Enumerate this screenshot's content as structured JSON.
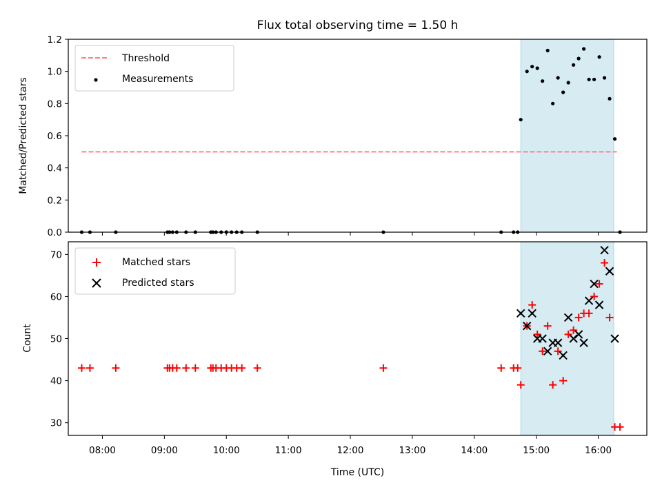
{
  "chart_data": [
    {
      "type": "scatter",
      "title": "Flux total observing time = 1.50 h",
      "xlabel": "",
      "ylabel": "Matched/Predicted stars",
      "xlim": [
        "07:27",
        "16:47"
      ],
      "ylim": [
        0,
        1.2
      ],
      "yticks": [
        "0.0",
        "0.2",
        "0.4",
        "0.6",
        "0.8",
        "1.0",
        "1.2"
      ],
      "highlight_span": {
        "x0": "14:45",
        "x1": "16:15",
        "color": "#add8e6"
      },
      "threshold": {
        "name": "Threshold",
        "y": 0.5,
        "x0": "07:40",
        "x1": "16:18",
        "color": "#ff7f7f",
        "style": "dashed"
      },
      "legend": {
        "location": "upper left",
        "items": [
          "Threshold",
          "Measurements"
        ]
      },
      "series": [
        {
          "name": "Measurements",
          "color": "#000000",
          "marker": "dot",
          "points": [
            [
              "07:40",
              0
            ],
            [
              "07:48",
              0
            ],
            [
              "08:13",
              0
            ],
            [
              "09:03",
              0
            ],
            [
              "09:05",
              0
            ],
            [
              "09:08",
              0
            ],
            [
              "09:12",
              0
            ],
            [
              "09:21",
              0
            ],
            [
              "09:30",
              0
            ],
            [
              "09:45",
              0
            ],
            [
              "09:47",
              0
            ],
            [
              "09:50",
              0
            ],
            [
              "09:55",
              0
            ],
            [
              "10:00",
              0
            ],
            [
              "10:05",
              0
            ],
            [
              "10:10",
              0
            ],
            [
              "10:15",
              0
            ],
            [
              "10:30",
              0
            ],
            [
              "12:32",
              0
            ],
            [
              "14:26",
              0
            ],
            [
              "14:38",
              0
            ],
            [
              "14:42",
              0
            ],
            [
              "14:45",
              0.7
            ],
            [
              "14:51",
              1.0
            ],
            [
              "14:56",
              1.03
            ],
            [
              "15:01",
              1.02
            ],
            [
              "15:06",
              0.94
            ],
            [
              "15:11",
              1.13
            ],
            [
              "15:16",
              0.8
            ],
            [
              "15:21",
              0.96
            ],
            [
              "15:26",
              0.87
            ],
            [
              "15:31",
              0.93
            ],
            [
              "15:36",
              1.04
            ],
            [
              "15:41",
              1.08
            ],
            [
              "15:46",
              1.14
            ],
            [
              "15:51",
              0.95
            ],
            [
              "15:56",
              0.95
            ],
            [
              "16:01",
              1.09
            ],
            [
              "16:06",
              0.96
            ],
            [
              "16:11",
              0.83
            ],
            [
              "16:16",
              0.58
            ],
            [
              "16:21",
              0
            ]
          ]
        }
      ]
    },
    {
      "type": "scatter",
      "title": "",
      "xlabel": "Time (UTC)",
      "ylabel": "Count",
      "xlim": [
        "07:27",
        "16:47"
      ],
      "ylim": [
        27,
        73
      ],
      "xticks": [
        "08:00",
        "09:00",
        "10:00",
        "11:00",
        "12:00",
        "13:00",
        "14:00",
        "15:00",
        "16:00"
      ],
      "yticks": [
        "30",
        "40",
        "50",
        "60",
        "70"
      ],
      "highlight_span": {
        "x0": "14:45",
        "x1": "16:15",
        "color": "#add8e6"
      },
      "legend": {
        "location": "upper left",
        "items": [
          "Matched stars",
          "Predicted stars"
        ]
      },
      "series": [
        {
          "name": "Matched stars",
          "color": "#ff0000",
          "marker": "plus",
          "points": [
            [
              "07:40",
              43
            ],
            [
              "07:48",
              43
            ],
            [
              "08:13",
              43
            ],
            [
              "09:03",
              43
            ],
            [
              "09:05",
              43
            ],
            [
              "09:08",
              43
            ],
            [
              "09:12",
              43
            ],
            [
              "09:21",
              43
            ],
            [
              "09:30",
              43
            ],
            [
              "09:45",
              43
            ],
            [
              "09:47",
              43
            ],
            [
              "09:50",
              43
            ],
            [
              "09:55",
              43
            ],
            [
              "10:00",
              43
            ],
            [
              "10:05",
              43
            ],
            [
              "10:10",
              43
            ],
            [
              "10:15",
              43
            ],
            [
              "10:30",
              43
            ],
            [
              "12:32",
              43
            ],
            [
              "14:26",
              43
            ],
            [
              "14:38",
              43
            ],
            [
              "14:42",
              43
            ],
            [
              "14:45",
              39
            ],
            [
              "14:51",
              53
            ],
            [
              "14:56",
              58
            ],
            [
              "15:01",
              51
            ],
            [
              "15:06",
              47
            ],
            [
              "15:11",
              53
            ],
            [
              "15:16",
              39
            ],
            [
              "15:21",
              47
            ],
            [
              "15:26",
              40
            ],
            [
              "15:31",
              51
            ],
            [
              "15:36",
              52
            ],
            [
              "15:41",
              55
            ],
            [
              "15:46",
              56
            ],
            [
              "15:51",
              56
            ],
            [
              "15:56",
              60
            ],
            [
              "16:01",
              63
            ],
            [
              "16:06",
              68
            ],
            [
              "16:11",
              55
            ],
            [
              "16:16",
              29
            ],
            [
              "16:21",
              29
            ]
          ]
        },
        {
          "name": "Predicted stars",
          "color": "#000000",
          "marker": "x",
          "points": [
            [
              "14:45",
              56
            ],
            [
              "14:51",
              53
            ],
            [
              "14:56",
              56
            ],
            [
              "15:01",
              50
            ],
            [
              "15:06",
              50
            ],
            [
              "15:11",
              47
            ],
            [
              "15:16",
              49
            ],
            [
              "15:21",
              49
            ],
            [
              "15:26",
              46
            ],
            [
              "15:31",
              55
            ],
            [
              "15:36",
              50
            ],
            [
              "15:41",
              51
            ],
            [
              "15:46",
              49
            ],
            [
              "15:51",
              59
            ],
            [
              "15:56",
              63
            ],
            [
              "16:01",
              58
            ],
            [
              "16:06",
              71
            ],
            [
              "16:11",
              66
            ],
            [
              "16:16",
              50
            ]
          ]
        }
      ]
    }
  ]
}
